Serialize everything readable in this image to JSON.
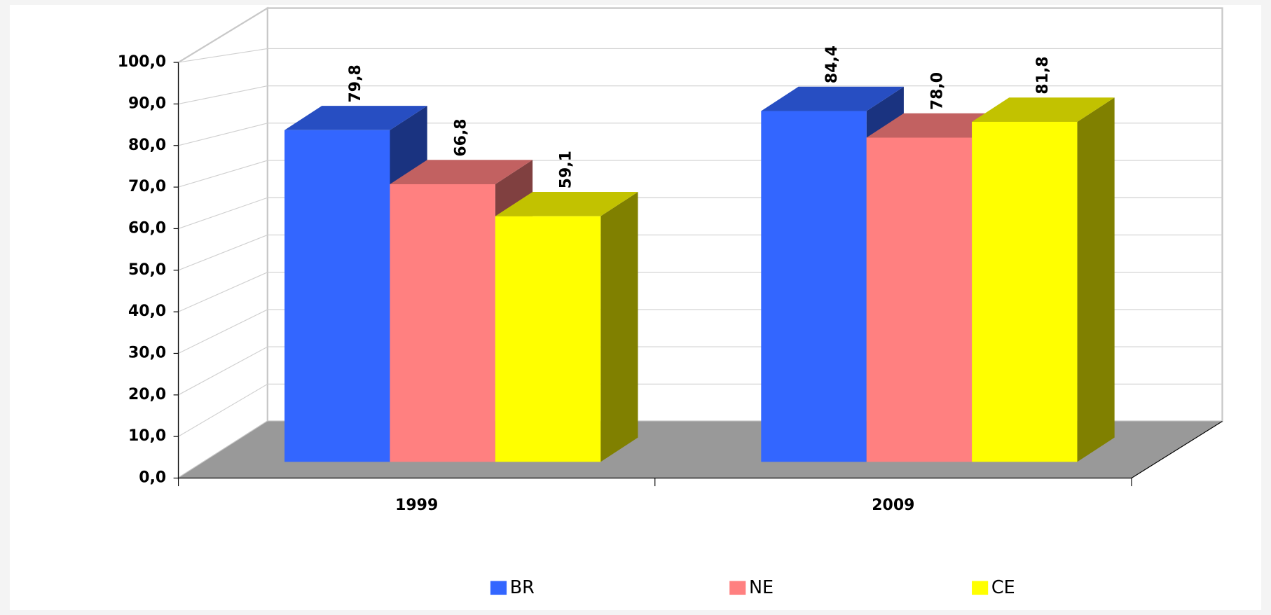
{
  "chart_data": {
    "type": "bar",
    "categories": [
      "1999",
      "2009"
    ],
    "series": [
      {
        "name": "BR",
        "color": "#3366ff",
        "values": [
          79.8,
          84.4
        ],
        "value_labels": [
          "79,8",
          "84,4"
        ]
      },
      {
        "name": "NE",
        "color": "#ff8080",
        "values": [
          66.8,
          78.0
        ],
        "value_labels": [
          "66,8",
          "78,0"
        ]
      },
      {
        "name": "CE",
        "color": "#ffff00",
        "values": [
          59.1,
          81.8
        ],
        "value_labels": [
          "59,1",
          "81,8"
        ]
      }
    ],
    "ylim": [
      0,
      100
    ],
    "yticks": [
      {
        "value": 0,
        "label": "0,0"
      },
      {
        "value": 10,
        "label": "10,0"
      },
      {
        "value": 20,
        "label": "20,0"
      },
      {
        "value": 30,
        "label": "30,0"
      },
      {
        "value": 40,
        "label": "40,0"
      },
      {
        "value": 50,
        "label": "50,0"
      },
      {
        "value": 60,
        "label": "60,0"
      },
      {
        "value": 70,
        "label": "70,0"
      },
      {
        "value": 80,
        "label": "80,0"
      },
      {
        "value": 90,
        "label": "90,0"
      },
      {
        "value": 100,
        "label": "100,0"
      }
    ],
    "grid": true,
    "legend": "bottom"
  }
}
